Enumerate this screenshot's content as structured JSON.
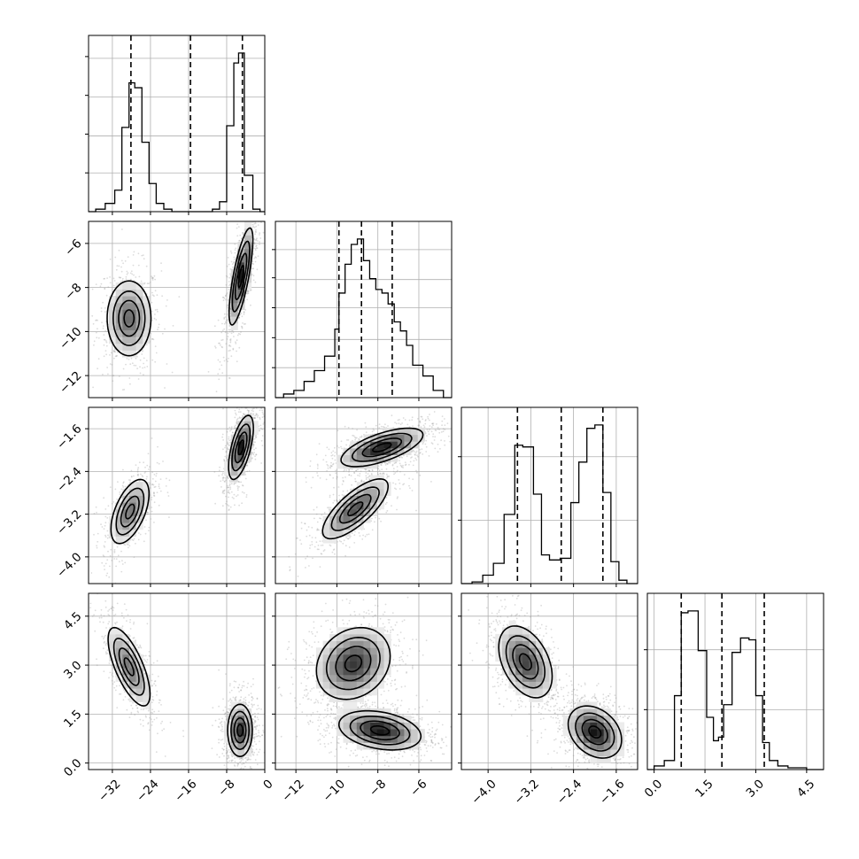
{
  "chart_data": {
    "type": "corner",
    "parameters": [
      {
        "xlim": [
          -37,
          0
        ],
        "xticks": [
          -32,
          -24,
          -16,
          -8,
          0
        ],
        "xtick_labels": [
          "−32",
          "−24",
          "−16",
          "−8",
          "0"
        ],
        "quantiles": [
          -28.1,
          -15.6,
          -4.7
        ],
        "hist": {
          "edges": [
            -35.5,
            -33.5,
            -31.5,
            -30.0,
            -28.5,
            -27.3,
            -25.8,
            -24.3,
            -22.8,
            -21.2,
            -19.5,
            -11.0,
            -9.5,
            -8.0,
            -6.5,
            -5.5,
            -4.3,
            -2.5,
            -1.0
          ],
          "counts": [
            0.015,
            0.05,
            0.13,
            0.51,
            0.78,
            0.75,
            0.42,
            0.17,
            0.05,
            0.015,
            0.0,
            0.015,
            0.06,
            0.52,
            0.9,
            0.96,
            0.22,
            0.015
          ]
        }
      },
      {
        "xlim": [
          -13,
          -4.4
        ],
        "xticks": [
          -12,
          -10,
          -8,
          -6
        ],
        "xtick_labels": [
          "−12",
          "−10",
          "−8",
          "−6"
        ],
        "ylim": [
          -13,
          -5
        ],
        "yticks": [
          -6,
          -8,
          -10,
          -12
        ],
        "ytick_labels": [
          "−6",
          "−8",
          "−10",
          "−12"
        ],
        "quantiles": [
          -9.9,
          -8.8,
          -7.3
        ],
        "hist": {
          "edges": [
            -12.6,
            -12.1,
            -11.6,
            -11.1,
            -10.6,
            -10.1,
            -9.9,
            -9.6,
            -9.3,
            -9.0,
            -8.7,
            -8.4,
            -8.1,
            -7.8,
            -7.5,
            -7.2,
            -6.9,
            -6.6,
            -6.3,
            -5.8,
            -5.3,
            -4.8
          ],
          "counts": [
            0.02,
            0.04,
            0.09,
            0.15,
            0.23,
            0.38,
            0.58,
            0.74,
            0.85,
            0.88,
            0.76,
            0.66,
            0.6,
            0.58,
            0.52,
            0.42,
            0.37,
            0.29,
            0.18,
            0.12,
            0.04
          ]
        }
      },
      {
        "xlim": [
          -4.5,
          -1.2
        ],
        "xticks": [
          -4.0,
          -3.2,
          -2.4,
          -1.6
        ],
        "xtick_labels": [
          "−4.0",
          "−3.2",
          "−2.4",
          "−1.6"
        ],
        "ylim": [
          -4.5,
          -1.2
        ],
        "yticks": [
          -1.6,
          -2.4,
          -3.2,
          -4.0
        ],
        "ytick_labels": [
          "−1.6",
          "−2.4",
          "−3.2",
          "−4.0"
        ],
        "quantiles": [
          -3.45,
          -2.63,
          -1.85
        ],
        "hist": {
          "edges": [
            -4.3,
            -4.1,
            -3.9,
            -3.7,
            -3.5,
            -3.35,
            -3.15,
            -3.0,
            -2.85,
            -2.65,
            -2.45,
            -2.3,
            -2.15,
            -2.0,
            -1.85,
            -1.7,
            -1.55,
            -1.4
          ],
          "counts": [
            0.01,
            0.05,
            0.12,
            0.41,
            0.82,
            0.81,
            0.53,
            0.17,
            0.14,
            0.15,
            0.48,
            0.72,
            0.92,
            0.94,
            0.54,
            0.13,
            0.02
          ]
        }
      },
      {
        "xlim": [
          -0.2,
          5.0
        ],
        "xticks": [
          0.0,
          1.5,
          3.0,
          4.5
        ],
        "xtick_labels": [
          "0.0",
          "1.5",
          "3.0",
          "4.5"
        ],
        "ylim": [
          -0.2,
          5.2
        ],
        "yticks": [
          4.5,
          3.0,
          1.5,
          0.0
        ],
        "ytick_labels": [
          "4.5",
          "3.0",
          "1.5",
          "0.0"
        ],
        "quantiles": [
          0.8,
          2.0,
          3.25
        ],
        "hist": {
          "edges": [
            0.0,
            0.3,
            0.6,
            0.8,
            1.0,
            1.3,
            1.55,
            1.75,
            1.9,
            2.05,
            2.3,
            2.55,
            2.8,
            3.0,
            3.2,
            3.4,
            3.65,
            3.95,
            4.25,
            4.5,
            4.8
          ],
          "counts": [
            0.02,
            0.05,
            0.41,
            0.87,
            0.88,
            0.66,
            0.29,
            0.16,
            0.18,
            0.36,
            0.65,
            0.73,
            0.72,
            0.41,
            0.15,
            0.05,
            0.02,
            0.01,
            0.01,
            0.0
          ]
        }
      }
    ],
    "blobs": {
      "1-0": [
        {
          "cx": -28.5,
          "cy": -9.4,
          "sx": 2.3,
          "sy": 0.85,
          "rho": 0.0,
          "peak": 0.65
        },
        {
          "cx": -5.0,
          "cy": -7.5,
          "sx": 1.25,
          "sy": 1.1,
          "rho": 0.75,
          "peak": 1.0
        }
      ],
      "2-0": [
        {
          "cx": -28.3,
          "cy": -3.15,
          "sx": 2.0,
          "sy": 0.3,
          "rho": 0.55,
          "peak": 0.6
        },
        {
          "cx": -5.0,
          "cy": -1.95,
          "sx": 1.3,
          "sy": 0.3,
          "rho": 0.6,
          "peak": 1.0
        }
      ],
      "3-0": [
        {
          "cx": -28.5,
          "cy": 2.95,
          "sx": 2.2,
          "sy": 0.6,
          "rho": -0.7,
          "peak": 0.6
        },
        {
          "cx": -5.2,
          "cy": 1.0,
          "sx": 1.3,
          "sy": 0.4,
          "rho": 0.0,
          "peak": 0.9
        }
      ],
      "2-1": [
        {
          "cx": -9.1,
          "cy": -3.1,
          "sx": 0.8,
          "sy": 0.28,
          "rho": 0.75,
          "peak": 0.75
        },
        {
          "cx": -7.8,
          "cy": -1.95,
          "sx": 1.0,
          "sy": 0.18,
          "rho": 0.65,
          "peak": 1.0
        }
      ],
      "3-1": [
        {
          "cx": -9.2,
          "cy": 3.05,
          "sx": 0.9,
          "sy": 0.55,
          "rho": 0.2,
          "peak": 0.85
        },
        {
          "cx": -7.9,
          "cy": 1.0,
          "sx": 1.0,
          "sy": 0.3,
          "rho": -0.3,
          "peak": 1.0
        }
      ],
      "3-2": [
        {
          "cx": -3.3,
          "cy": 3.1,
          "sx": 0.25,
          "sy": 0.55,
          "rho": -0.4,
          "peak": 0.8
        },
        {
          "cx": -2.0,
          "cy": 0.95,
          "sx": 0.25,
          "sy": 0.4,
          "rho": -0.3,
          "peak": 1.0
        }
      ]
    }
  }
}
